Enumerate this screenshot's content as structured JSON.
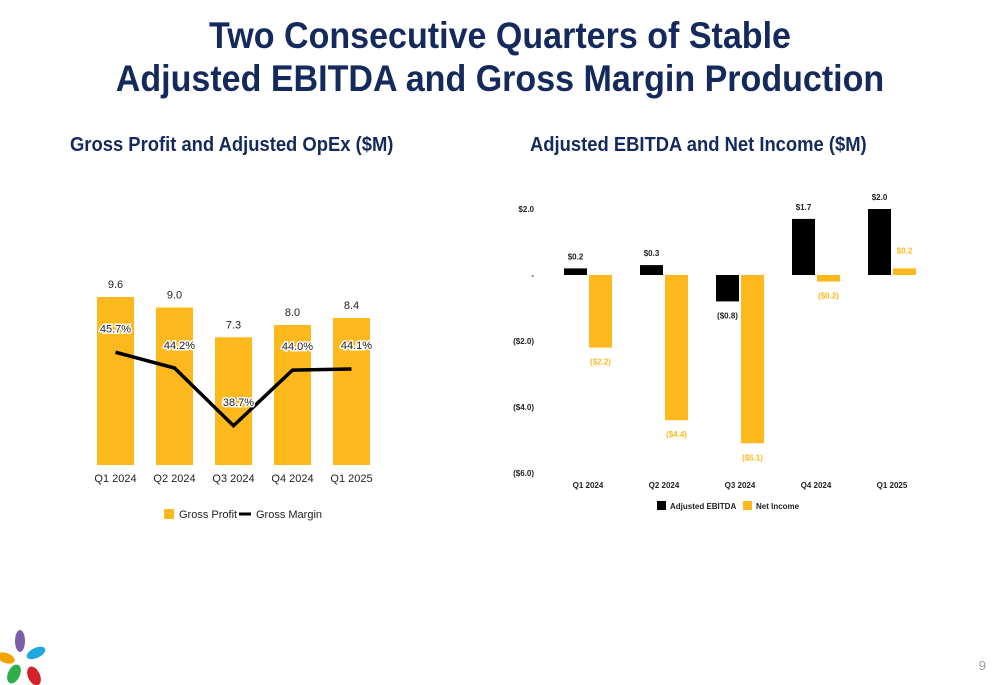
{
  "slide": {
    "title_line1": "Two Consecutive Quarters of Stable",
    "title_line2": "Adjusted EBITDA and Gross Margin Production",
    "page_number": "9"
  },
  "colors": {
    "title": "#142a5c",
    "gold": "#FDB81E",
    "black": "#000000",
    "axis_text": "#222222"
  },
  "chart_data": [
    {
      "type": "bar",
      "title": "Gross Profit and Adjusted OpEx ($M)",
      "categories": [
        "Q1 2024",
        "Q2 2024",
        "Q3 2024",
        "Q4 2024",
        "Q1 2025"
      ],
      "series": [
        {
          "name": "Gross Profit",
          "type": "bar",
          "values": [
            9.6,
            9.0,
            7.3,
            8.0,
            8.4
          ],
          "labels": [
            "9.6",
            "9.0",
            "7.3",
            "8.0",
            "8.4"
          ],
          "color": "#FDB81E"
        },
        {
          "name": "Gross Margin",
          "type": "line",
          "values": [
            45.7,
            44.2,
            38.7,
            44.0,
            44.1
          ],
          "labels": [
            "45.7%",
            "44.2%",
            "38.7%",
            "44.0%",
            "44.1%"
          ],
          "color": "#000000"
        }
      ],
      "legend_position": "bottom",
      "grid": false
    },
    {
      "type": "bar",
      "title": "Adjusted EBITDA and Net Income ($M)",
      "categories": [
        "Q1 2024",
        "Q2 2024",
        "Q3 2024",
        "Q4 2024",
        "Q1 2025"
      ],
      "series": [
        {
          "name": "Adjusted EBITDA",
          "values": [
            0.2,
            0.3,
            -0.8,
            1.7,
            2.0
          ],
          "labels": [
            "$0.2",
            "$0.3",
            "($0.8)",
            "$1.7",
            "$2.0"
          ],
          "color": "#000000"
        },
        {
          "name": "Net Income",
          "values": [
            -2.2,
            -4.4,
            -5.1,
            -0.2,
            0.2
          ],
          "labels": [
            "($2.2)",
            "($4.4)",
            "($5.1)",
            "($0.2)",
            "$0.2"
          ],
          "color": "#FDB81E"
        }
      ],
      "y_ticks": [
        2,
        0,
        -2,
        -4,
        -6
      ],
      "y_tick_labels": [
        "$2.0",
        "-",
        "($2.0)",
        "($4.0)",
        "($6.0)"
      ],
      "ylim": [
        -6,
        2
      ],
      "legend_position": "bottom",
      "grid": false
    }
  ]
}
